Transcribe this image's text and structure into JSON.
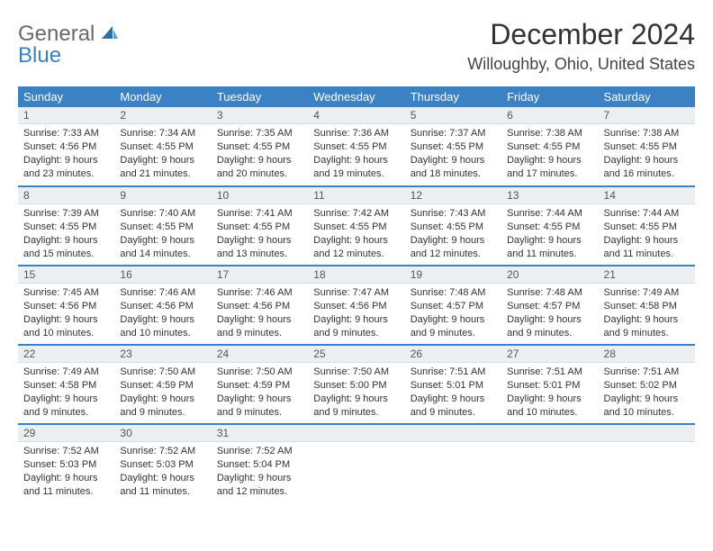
{
  "logo": {
    "text1": "General",
    "text2": "Blue"
  },
  "title": {
    "month": "December 2024",
    "location": "Willoughby, Ohio, United States"
  },
  "colors": {
    "header_bg": "#3b82c4",
    "header_text": "#ffffff",
    "border": "#3b82c4",
    "daynum_bg": "#eceff1"
  },
  "weekdays": [
    "Sunday",
    "Monday",
    "Tuesday",
    "Wednesday",
    "Thursday",
    "Friday",
    "Saturday"
  ],
  "labels": {
    "sunrise": "Sunrise:",
    "sunset": "Sunset:",
    "daylight": "Daylight:"
  },
  "weeks": [
    [
      {
        "n": "1",
        "sr": "7:33 AM",
        "ss": "4:56 PM",
        "dl": "9 hours and 23 minutes."
      },
      {
        "n": "2",
        "sr": "7:34 AM",
        "ss": "4:55 PM",
        "dl": "9 hours and 21 minutes."
      },
      {
        "n": "3",
        "sr": "7:35 AM",
        "ss": "4:55 PM",
        "dl": "9 hours and 20 minutes."
      },
      {
        "n": "4",
        "sr": "7:36 AM",
        "ss": "4:55 PM",
        "dl": "9 hours and 19 minutes."
      },
      {
        "n": "5",
        "sr": "7:37 AM",
        "ss": "4:55 PM",
        "dl": "9 hours and 18 minutes."
      },
      {
        "n": "6",
        "sr": "7:38 AM",
        "ss": "4:55 PM",
        "dl": "9 hours and 17 minutes."
      },
      {
        "n": "7",
        "sr": "7:38 AM",
        "ss": "4:55 PM",
        "dl": "9 hours and 16 minutes."
      }
    ],
    [
      {
        "n": "8",
        "sr": "7:39 AM",
        "ss": "4:55 PM",
        "dl": "9 hours and 15 minutes."
      },
      {
        "n": "9",
        "sr": "7:40 AM",
        "ss": "4:55 PM",
        "dl": "9 hours and 14 minutes."
      },
      {
        "n": "10",
        "sr": "7:41 AM",
        "ss": "4:55 PM",
        "dl": "9 hours and 13 minutes."
      },
      {
        "n": "11",
        "sr": "7:42 AM",
        "ss": "4:55 PM",
        "dl": "9 hours and 12 minutes."
      },
      {
        "n": "12",
        "sr": "7:43 AM",
        "ss": "4:55 PM",
        "dl": "9 hours and 12 minutes."
      },
      {
        "n": "13",
        "sr": "7:44 AM",
        "ss": "4:55 PM",
        "dl": "9 hours and 11 minutes."
      },
      {
        "n": "14",
        "sr": "7:44 AM",
        "ss": "4:55 PM",
        "dl": "9 hours and 11 minutes."
      }
    ],
    [
      {
        "n": "15",
        "sr": "7:45 AM",
        "ss": "4:56 PM",
        "dl": "9 hours and 10 minutes."
      },
      {
        "n": "16",
        "sr": "7:46 AM",
        "ss": "4:56 PM",
        "dl": "9 hours and 10 minutes."
      },
      {
        "n": "17",
        "sr": "7:46 AM",
        "ss": "4:56 PM",
        "dl": "9 hours and 9 minutes."
      },
      {
        "n": "18",
        "sr": "7:47 AM",
        "ss": "4:56 PM",
        "dl": "9 hours and 9 minutes."
      },
      {
        "n": "19",
        "sr": "7:48 AM",
        "ss": "4:57 PM",
        "dl": "9 hours and 9 minutes."
      },
      {
        "n": "20",
        "sr": "7:48 AM",
        "ss": "4:57 PM",
        "dl": "9 hours and 9 minutes."
      },
      {
        "n": "21",
        "sr": "7:49 AM",
        "ss": "4:58 PM",
        "dl": "9 hours and 9 minutes."
      }
    ],
    [
      {
        "n": "22",
        "sr": "7:49 AM",
        "ss": "4:58 PM",
        "dl": "9 hours and 9 minutes."
      },
      {
        "n": "23",
        "sr": "7:50 AM",
        "ss": "4:59 PM",
        "dl": "9 hours and 9 minutes."
      },
      {
        "n": "24",
        "sr": "7:50 AM",
        "ss": "4:59 PM",
        "dl": "9 hours and 9 minutes."
      },
      {
        "n": "25",
        "sr": "7:50 AM",
        "ss": "5:00 PM",
        "dl": "9 hours and 9 minutes."
      },
      {
        "n": "26",
        "sr": "7:51 AM",
        "ss": "5:01 PM",
        "dl": "9 hours and 9 minutes."
      },
      {
        "n": "27",
        "sr": "7:51 AM",
        "ss": "5:01 PM",
        "dl": "9 hours and 10 minutes."
      },
      {
        "n": "28",
        "sr": "7:51 AM",
        "ss": "5:02 PM",
        "dl": "9 hours and 10 minutes."
      }
    ],
    [
      {
        "n": "29",
        "sr": "7:52 AM",
        "ss": "5:03 PM",
        "dl": "9 hours and 11 minutes."
      },
      {
        "n": "30",
        "sr": "7:52 AM",
        "ss": "5:03 PM",
        "dl": "9 hours and 11 minutes."
      },
      {
        "n": "31",
        "sr": "7:52 AM",
        "ss": "5:04 PM",
        "dl": "9 hours and 12 minutes."
      },
      null,
      null,
      null,
      null
    ]
  ]
}
